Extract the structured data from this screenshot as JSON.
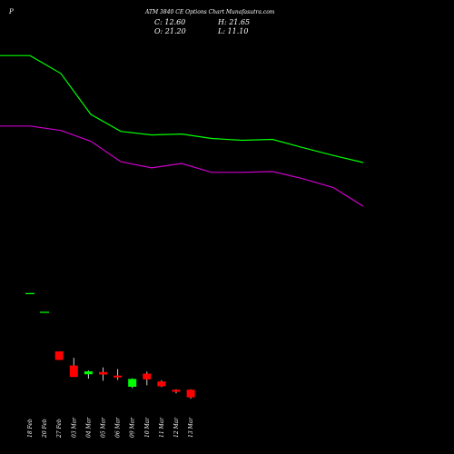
{
  "chart_data": {
    "type": "candlestick",
    "header": {
      "prefix": "P",
      "title": "ATM 3840  CE Options  Chart Munafasutra.com",
      "close": "C: 12.60",
      "high": "H: 21.65",
      "open": "O: 21.20",
      "low": "L: 11.10"
    },
    "dates": [
      "18 Feb",
      "20 Feb",
      "27 Feb",
      "03 Mar",
      "04 Mar",
      "05 Mar",
      "06 Mar",
      "09 Mar",
      "10 Mar",
      "11 Mar",
      "12 Mar",
      "13 Mar"
    ],
    "candles": [
      {
        "o": 129,
        "h": 129,
        "l": 129,
        "c": 129
      },
      {
        "o": 108,
        "h": 108,
        "l": 108,
        "c": 108
      },
      {
        "o": 64.2,
        "h": 64.2,
        "l": 54.6,
        "c": 54.6
      },
      {
        "o": 48.3,
        "h": 57.0,
        "l": 35.5,
        "c": 35.5
      },
      {
        "o": 38.5,
        "h": 42.8,
        "l": 33.6,
        "c": 41.8
      },
      {
        "o": 41.0,
        "h": 46.2,
        "l": 31.3,
        "c": 38.2
      },
      {
        "o": 37.0,
        "h": 44.4,
        "l": 32.2,
        "c": 34.9
      },
      {
        "o": 24.5,
        "h": 34.0,
        "l": 23.0,
        "c": 33.3
      },
      {
        "o": 39.2,
        "h": 41.5,
        "l": 26.1,
        "c": 32.8
      },
      {
        "o": 30.4,
        "h": 31.8,
        "l": 24.2,
        "c": 25.0
      },
      {
        "o": 21.2,
        "h": 21.65,
        "l": 17.0,
        "c": 18.9
      },
      {
        "o": 21.2,
        "h": 21.65,
        "l": 11.1,
        "c": 12.6
      }
    ],
    "ma_green": [
      396,
      396,
      376,
      330,
      311,
      307,
      308,
      303,
      301,
      302,
      293,
      284,
      276
    ],
    "ma_magenta": [
      317,
      317,
      312,
      300,
      277,
      270,
      275,
      265,
      265,
      266,
      258,
      248,
      227
    ],
    "ylim": [
      0,
      438
    ],
    "colors": {
      "background": "#000000",
      "up": "#00ff00",
      "down": "#ff0000",
      "ma_green": "#00ff00",
      "ma_magenta": "#cc00cc",
      "text": "#ffffff",
      "wick": "#cccccc"
    }
  }
}
